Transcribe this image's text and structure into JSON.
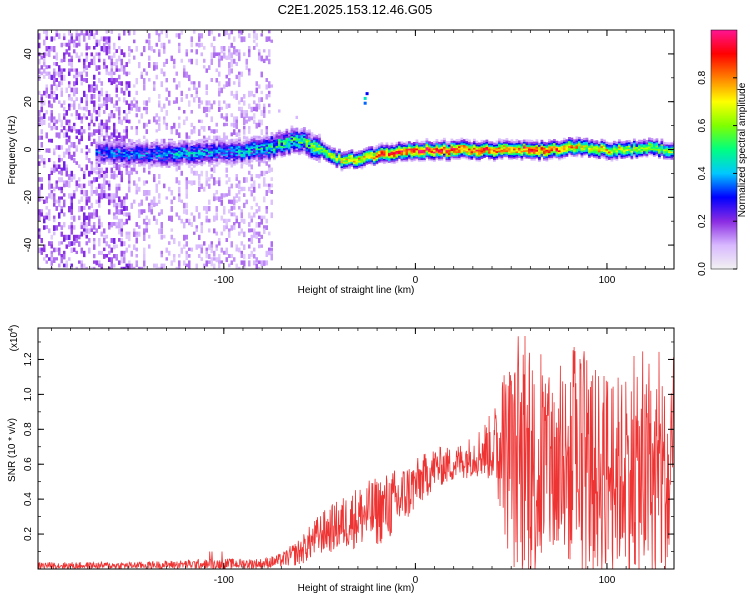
{
  "title": "C2E1.2025.153.12.46.G05",
  "chart_data": [
    {
      "type": "heatmap",
      "xlabel": "Height of straight line (km)",
      "ylabel": "Frequency (Hz)",
      "xlim": [
        -197,
        135
      ],
      "ylim": [
        -50,
        50
      ],
      "xticks": [
        -100,
        0,
        100
      ],
      "yticks": [
        -40,
        -20,
        0,
        20,
        40
      ],
      "colorbar": {
        "label": "Normalized spectral amplitude",
        "range": [
          0,
          1
        ],
        "ticks": [
          0.0,
          0.2,
          0.4,
          0.6,
          0.8
        ],
        "tick_labels": [
          "0.0",
          "0.2",
          "0.4",
          "0.6",
          "0.8"
        ],
        "colormap": [
          "#f2f2f2",
          "#d8b8ff",
          "#8a2be2",
          "#0000ff",
          "#00c8ff",
          "#00ff80",
          "#80ff00",
          "#ffff00",
          "#ff8000",
          "#ff0000",
          "#ff1493"
        ]
      },
      "ridge": {
        "description_free": true,
        "x": [
          -165,
          -140,
          -120,
          -100,
          -80,
          -70,
          -60,
          -50,
          -40,
          -30,
          -20,
          -10,
          0,
          10,
          20,
          30,
          40,
          50,
          60,
          70,
          80,
          90,
          100,
          110,
          120,
          132
        ],
        "frequency_hz": [
          -1,
          -2,
          -1,
          -1,
          0,
          3,
          4,
          0,
          -4,
          -4,
          -2,
          -1,
          0,
          0,
          0,
          0,
          0,
          0,
          0,
          0,
          1,
          1,
          0,
          0,
          1,
          0
        ],
        "amplitude": [
          0.35,
          0.4,
          0.45,
          0.4,
          0.5,
          0.55,
          0.6,
          0.6,
          0.7,
          0.75,
          0.85,
          0.9,
          0.95,
          0.95,
          0.95,
          0.9,
          0.85,
          0.85,
          0.9,
          0.9,
          0.8,
          0.7,
          0.75,
          0.7,
          0.65,
          0.6
        ]
      }
    },
    {
      "type": "line",
      "xlabel": "Height of straight line (km)",
      "ylabel": "SNR (10 * v/v)",
      "y_multiplier_label": "(x10",
      "y_multiplier_exp": "4",
      "y_multiplier_close": ")",
      "xlim": [
        -197,
        135
      ],
      "ylim": [
        0,
        1.38
      ],
      "xticks": [
        -100,
        0,
        100
      ],
      "yticks": [
        0.2,
        0.4,
        0.6,
        0.8,
        1.0,
        1.2
      ],
      "color": "#ee3333",
      "envelope": {
        "x": [
          -197,
          -150,
          -100,
          -90,
          -80,
          -70,
          -60,
          -50,
          -40,
          -30,
          -20,
          -10,
          0,
          10,
          20,
          30,
          40,
          50,
          60,
          70,
          80,
          90,
          100,
          110,
          120,
          135
        ],
        "base": [
          0.02,
          0.02,
          0.03,
          0.03,
          0.03,
          0.05,
          0.1,
          0.2,
          0.25,
          0.3,
          0.33,
          0.38,
          0.48,
          0.58,
          0.6,
          0.65,
          0.7,
          0.6,
          0.55,
          0.55,
          0.55,
          0.55,
          0.55,
          0.55,
          0.5,
          0.45
        ],
        "spread": [
          0.02,
          0.02,
          0.03,
          0.03,
          0.03,
          0.04,
          0.08,
          0.12,
          0.15,
          0.18,
          0.2,
          0.2,
          0.15,
          0.12,
          0.1,
          0.12,
          0.2,
          0.6,
          0.65,
          0.55,
          0.55,
          0.6,
          0.6,
          0.55,
          0.6,
          0.6
        ]
      }
    }
  ]
}
